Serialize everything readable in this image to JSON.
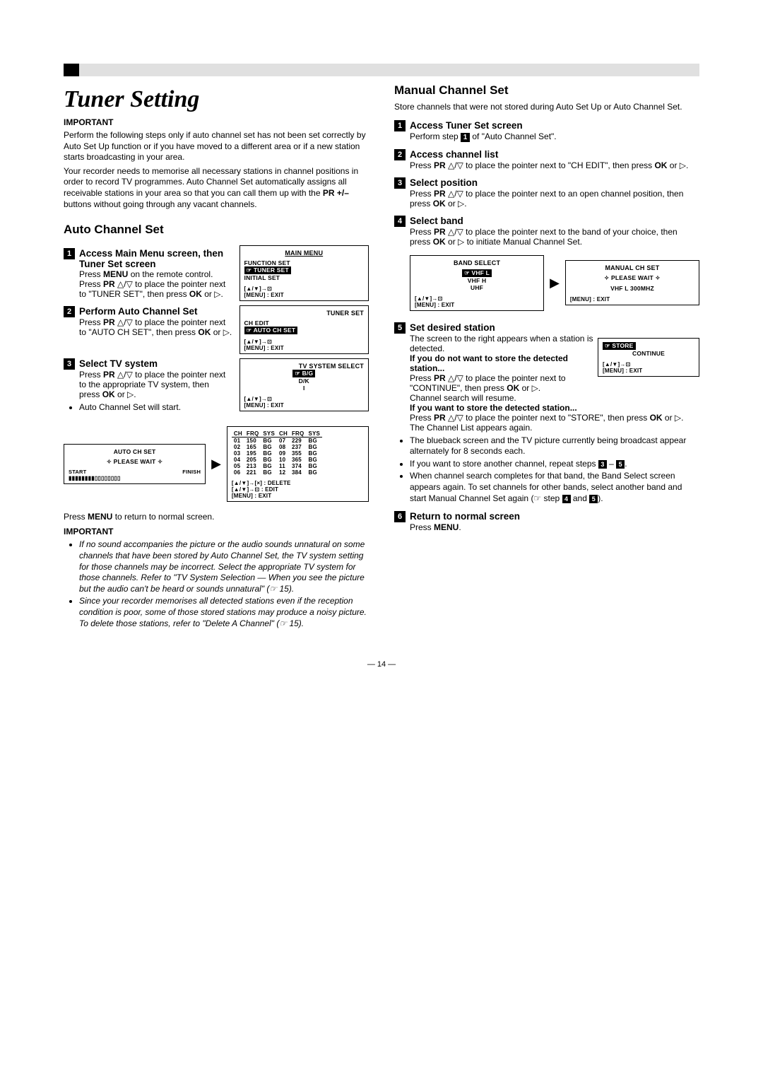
{
  "page_number": "— 14 —",
  "title": "Tuner Setting",
  "important1_label": "IMPORTANT",
  "intro1": "Perform the following steps only if auto channel set has not been set correctly by Auto Set Up function or if you have moved to a different area or if a new station starts broadcasting in your area.",
  "intro2_a": "Your recorder needs to memorise all necessary stations in channel positions in order to record TV programmes. Auto Channel Set automatically assigns all receivable stations in your area so that you can call them up with the ",
  "intro2_b": "PR +/–",
  "intro2_c": " buttons without going through any vacant channels.",
  "auto_title": "Auto Channel Set",
  "auto": {
    "s1_head": "Access Main Menu screen, then Tuner Set screen",
    "s1_body_a": "Press ",
    "s1_body_b": "MENU",
    "s1_body_c": " on the remote control. Press ",
    "s1_body_d": "PR",
    "s1_body_e": " △/▽ to place the pointer next to \"TUNER SET\", then press ",
    "s1_body_f": "OK",
    "s1_body_g": " or ▷.",
    "s2_head": "Perform Auto Channel Set",
    "s2_a": "Press ",
    "s2_b": "PR",
    "s2_c": " △/▽ to place the pointer next to \"AUTO CH SET\", then press ",
    "s2_d": "OK",
    "s2_e": " or ▷.",
    "s3_head": "Select TV system",
    "s3_a": "Press ",
    "s3_b": "PR",
    "s3_c": " △/▽ to place the pointer next to the appropriate TV system, then press ",
    "s3_d": "OK",
    "s3_e": " or ▷.",
    "s3_bullet": "Auto Channel Set will start.",
    "after_a": "Press ",
    "after_b": "MENU",
    "after_c": " to return to normal screen."
  },
  "important2_label": "IMPORTANT",
  "important2_b1": "If no sound accompanies the picture or the audio sounds unnatural on some channels that have been stored by Auto Channel Set, the TV system setting for those channels may be incorrect. Select the appropriate TV system for those channels. Refer to \"TV System Selection — When you see the picture but the audio can't be heard or sounds unnatural\" (☞ 15).",
  "important2_b2": "Since your recorder memorises all detected stations even if the reception condition is poor, some of those stored stations may produce a noisy picture. To delete those stations, refer to \"Delete A Channel\" (☞ 15).",
  "osd_main": {
    "title": "MAIN MENU",
    "l1": "FUNCTION SET",
    "l2": "TUNER SET",
    "l3": "INITIAL SET",
    "foot1": "[▲/▼]→⊡",
    "foot2": "[MENU] : EXIT"
  },
  "osd_tuner": {
    "title": "TUNER SET",
    "l1": "CH EDIT",
    "l2": "AUTO CH SET",
    "foot1": "[▲/▼]→⊡",
    "foot2": "[MENU] : EXIT"
  },
  "osd_tvsys": {
    "title": "TV SYSTEM SELECT",
    "l1": "B/G",
    "l2": "D/K",
    "l3": "I",
    "foot1": "[▲/▼]→⊡",
    "foot2": "[MENU] : EXIT"
  },
  "osd_autoch": {
    "title": "AUTO CH SET",
    "l1": "PLEASE WAIT",
    "start": "START",
    "finish": "FINISH"
  },
  "ch_table": {
    "cols": [
      "CH",
      "FRQ",
      "SYS",
      "CH",
      "FRQ",
      "SYS"
    ],
    "rows": [
      [
        "01",
        "150",
        "BG",
        "07",
        "229",
        "BG"
      ],
      [
        "02",
        "165",
        "BG",
        "08",
        "237",
        "BG"
      ],
      [
        "03",
        "195",
        "BG",
        "09",
        "355",
        "BG"
      ],
      [
        "04",
        "205",
        "BG",
        "10",
        "365",
        "BG"
      ],
      [
        "05",
        "213",
        "BG",
        "11",
        "374",
        "BG"
      ],
      [
        "06",
        "221",
        "BG",
        "12",
        "384",
        "BG"
      ]
    ],
    "foot1": "[▲/▼]→[×] : DELETE",
    "foot2": "[▲/▼]→⊡ : EDIT",
    "foot3": "[MENU] : EXIT"
  },
  "manual_title": "Manual Channel Set",
  "manual_intro": "Store channels that were not stored during Auto Set Up or Auto Channel Set.",
  "manual": {
    "s1_head": "Access Tuner Set screen",
    "s1_a": "Perform step ",
    "s1_b": " of \"Auto Channel Set\".",
    "s2_head": "Access channel list",
    "s2_a": "Press ",
    "s2_b": "PR",
    "s2_c": " △/▽ to place the pointer next to \"CH EDIT\", then press ",
    "s2_d": "OK",
    "s2_e": " or ▷.",
    "s3_head": "Select position",
    "s3_a": "Press ",
    "s3_b": "PR",
    "s3_c": " △/▽ to place the pointer next to an open channel position, then press ",
    "s3_d": "OK",
    "s3_e": " or ▷.",
    "s4_head": "Select band",
    "s4_a": "Press ",
    "s4_b": "PR",
    "s4_c": " △/▽ to place the pointer next to the band of your choice, then press ",
    "s4_d": "OK",
    "s4_e": " or ▷ to initiate Manual Channel Set.",
    "s5_head": "Set desired station",
    "s5_body": "The screen to the right appears when a station is detected.",
    "s5_bold1": "If you do not want to store the detected station...",
    "s5_a": "Press ",
    "s5_b": "PR",
    "s5_c": " △/▽ to place the pointer next to \"CONTINUE\", then press ",
    "s5_d": "OK",
    "s5_e": " or ▷.",
    "s5_f": "Channel search will resume.",
    "s5_bold2": "If you want to store the detected station...",
    "s5_g": "Press ",
    "s5_h": "PR",
    "s5_i": " △/▽ to place the pointer next to \"STORE\", then press ",
    "s5_j": "OK",
    "s5_k": " or ▷. The Channel List appears again.",
    "s5_bul1": "The blueback screen and the TV picture currently being broadcast appear alternately for 8 seconds each.",
    "s5_bul2a": "If you want to store another channel, repeat steps ",
    "s5_bul2b": " – ",
    "s5_bul2c": ".",
    "s5_bul3a": "When channel search completes for that band, the Band Select screen appears again. To set channels for other bands, select another band and start Manual Channel Set again (☞ step ",
    "s5_bul3b": " and ",
    "s5_bul3c": ").",
    "s6_head": "Return to normal screen",
    "s6_a": "Press ",
    "s6_b": "MENU",
    "s6_c": "."
  },
  "osd_band": {
    "title": "BAND SELECT",
    "l1": "VHF L",
    "l2": "VHF H",
    "l3": "UHF",
    "foot1": "[▲/▼]→⊡",
    "foot2": "[MENU] : EXIT"
  },
  "osd_mch": {
    "title": "MANUAL CH SET",
    "l1": "PLEASE WAIT",
    "l2": "VHF L 300MHZ",
    "foot": "[MENU] : EXIT"
  },
  "osd_store": {
    "l1": "STORE",
    "l2": "CONTINUE",
    "foot1": "[▲/▼]→⊡",
    "foot2": "[MENU] : EXIT"
  }
}
